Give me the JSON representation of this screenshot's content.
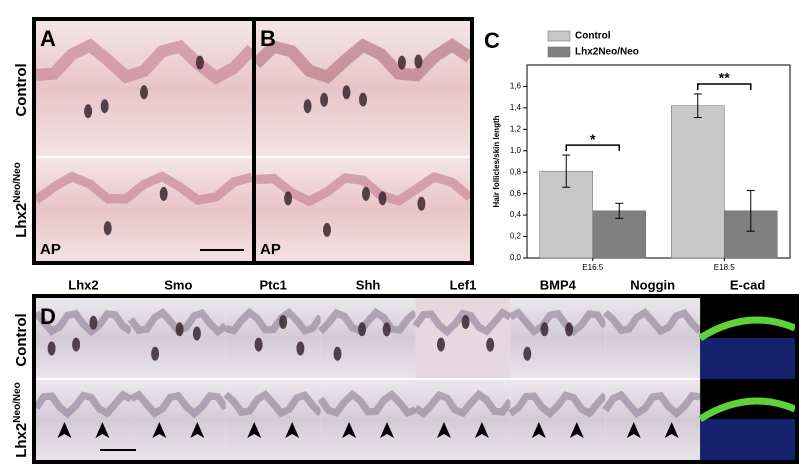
{
  "panel_labels": [
    "A",
    "B",
    "C",
    "D"
  ],
  "rows": {
    "control": "Control",
    "mutant": {
      "base": "Lhx2",
      "sup": "Neo/Neo"
    }
  },
  "ap_labels": [
    "AP",
    "AP"
  ],
  "genes": [
    "Lhx2",
    "Smo",
    "Ptc1",
    "Shh",
    "Lef1",
    "BMP4",
    "Noggin",
    "E-cad"
  ],
  "chart_data": {
    "type": "bar",
    "y_label": "Hair follicles/skin length",
    "categories": [
      "E16.5",
      "E18.5"
    ],
    "series": [
      {
        "name": "Control",
        "color": "#c8c8c8",
        "values": [
          0.81,
          1.42
        ],
        "errors": [
          0.15,
          0.11
        ]
      },
      {
        "name": "Lhx2Neo/Neo",
        "color": "#808080",
        "values": [
          0.44,
          0.44
        ],
        "errors": [
          0.07,
          0.19
        ]
      }
    ],
    "ylim": [
      0,
      1.8
    ],
    "yticks": [
      {
        "value": 0,
        "label": "0,0"
      },
      {
        "value": 0.2,
        "label": "0,2"
      },
      {
        "value": 0.4,
        "label": "0,4"
      },
      {
        "value": 0.6,
        "label": "0,6"
      },
      {
        "value": 0.8,
        "label": "0,8"
      },
      {
        "value": 1.0,
        "label": "1,0"
      },
      {
        "value": 1.2,
        "label": "1,2"
      },
      {
        "value": 1.4,
        "label": "1,4"
      },
      {
        "value": 1.6,
        "label": "1,6"
      }
    ],
    "annotations": [
      "*",
      "**"
    ],
    "legend": "top"
  }
}
